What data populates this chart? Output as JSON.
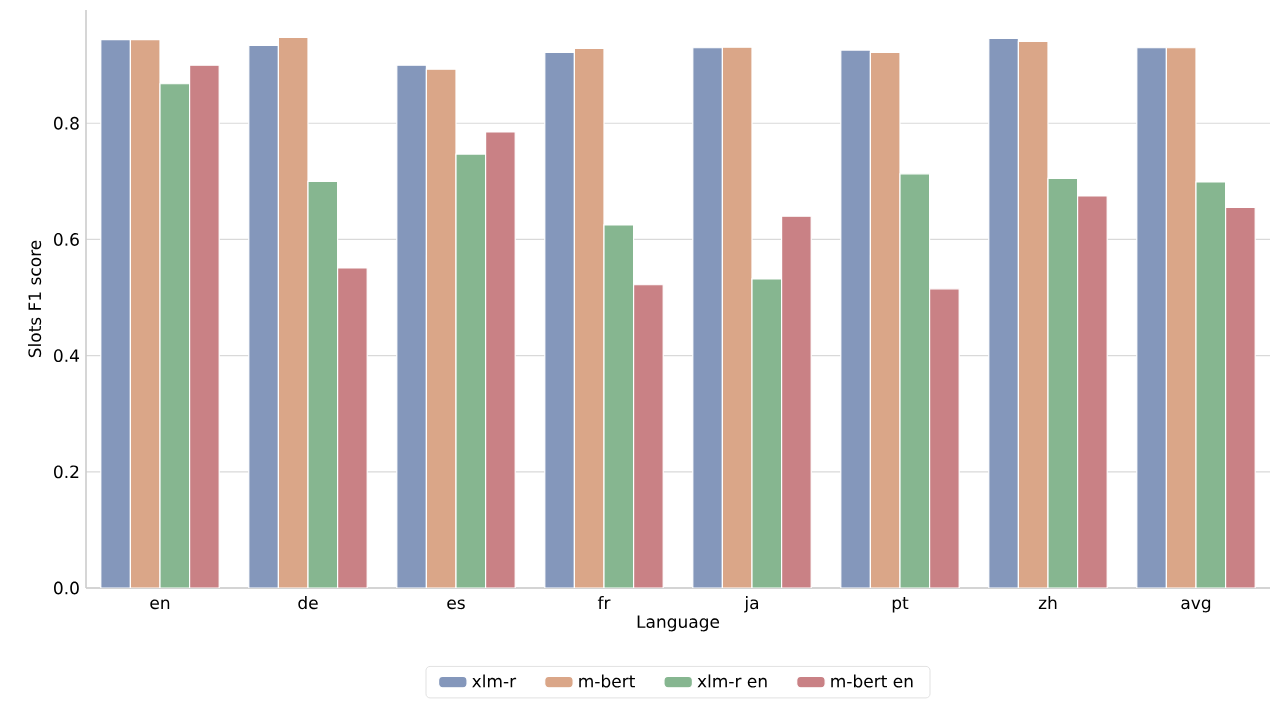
{
  "chart_data": {
    "type": "bar",
    "xlabel": "Language",
    "ylabel": "Slots F1 score",
    "categories": [
      "en",
      "de",
      "es",
      "fr",
      "ja",
      "pt",
      "zh",
      "avg"
    ],
    "series": [
      {
        "name": "xlm-r",
        "color": "#8497bb",
        "values": [
          0.944,
          0.934,
          0.9,
          0.922,
          0.93,
          0.926,
          0.946,
          0.93
        ]
      },
      {
        "name": "m-bert",
        "color": "#daa688",
        "values": [
          0.944,
          0.948,
          0.893,
          0.929,
          0.931,
          0.922,
          0.941,
          0.93
        ]
      },
      {
        "name": "xlm-r en",
        "color": "#86b690",
        "values": [
          0.868,
          0.7,
          0.747,
          0.625,
          0.532,
          0.713,
          0.705,
          0.699
        ]
      },
      {
        "name": "m-bert en",
        "color": "#c98185",
        "values": [
          0.9,
          0.551,
          0.785,
          0.522,
          0.64,
          0.515,
          0.675,
          0.655
        ]
      }
    ],
    "ylim": [
      0,
      0.995
    ],
    "yticks": [
      {
        "value": 0,
        "label": "0.0"
      },
      {
        "value": 0.2,
        "label": "0.2"
      },
      {
        "value": 0.4,
        "label": "0.4"
      },
      {
        "value": 0.6,
        "label": "0.6"
      },
      {
        "value": 0.8,
        "label": "0.8"
      }
    ],
    "grid": "y",
    "legend": "bottom"
  }
}
